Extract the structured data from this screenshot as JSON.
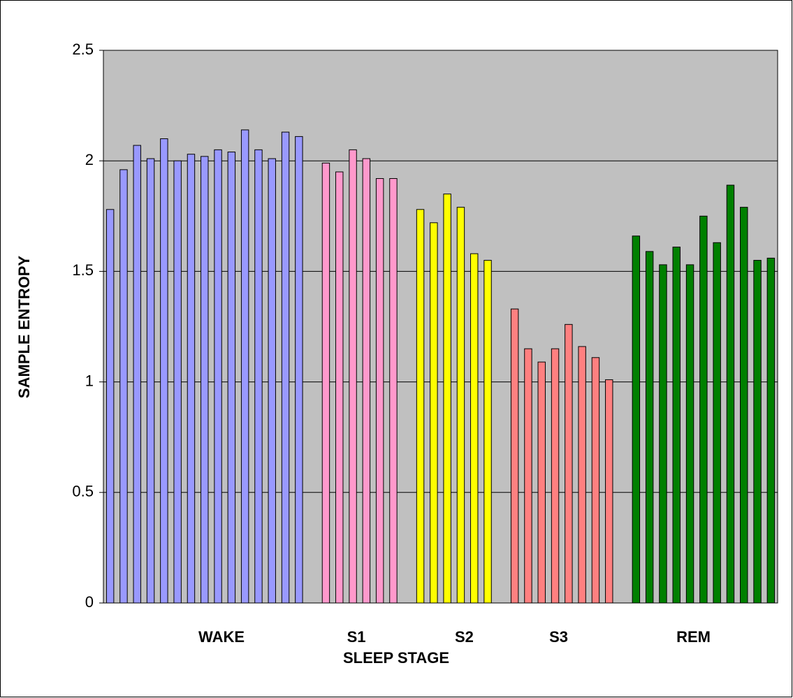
{
  "chart_data": {
    "type": "bar",
    "y_label": "SAMPLE ENTROPY",
    "x_label": "SLEEP STAGE",
    "categories": [
      null,
      null,
      null,
      null,
      null,
      null,
      null,
      null,
      "WAKE",
      null,
      null,
      null,
      null,
      null,
      null,
      null,
      null,
      null,
      "S1",
      null,
      null,
      null,
      null,
      null,
      null,
      null,
      "S2",
      null,
      null,
      null,
      null,
      null,
      null,
      "S3",
      null,
      null,
      null,
      null,
      null,
      null,
      null,
      null,
      null,
      "REM",
      null,
      null,
      null,
      null,
      null,
      null
    ],
    "values": [
      1.78,
      1.96,
      2.07,
      2.01,
      2.1,
      2.0,
      2.03,
      2.02,
      2.05,
      2.04,
      2.14,
      2.05,
      2.01,
      2.13,
      2.11,
      null,
      1.99,
      1.95,
      2.05,
      2.01,
      1.92,
      1.92,
      null,
      1.78,
      1.72,
      1.85,
      1.79,
      1.58,
      1.55,
      null,
      1.33,
      1.15,
      1.09,
      1.15,
      1.26,
      1.16,
      1.11,
      1.01,
      null,
      1.66,
      1.59,
      1.53,
      1.61,
      1.53,
      1.75,
      1.63,
      1.89,
      1.79,
      1.55,
      1.56
    ],
    "colors": [
      "#9999ff",
      "#9999ff",
      "#9999ff",
      "#9999ff",
      "#9999ff",
      "#9999ff",
      "#9999ff",
      "#9999ff",
      "#9999ff",
      "#9999ff",
      "#9999ff",
      "#9999ff",
      "#9999ff",
      "#9999ff",
      "#9999ff",
      null,
      "#ff99cc",
      "#ff99cc",
      "#ff99cc",
      "#ff99cc",
      "#ff99cc",
      "#ff99cc",
      null,
      "#ffff00",
      "#ffff00",
      "#ffff00",
      "#ffff00",
      "#ffff00",
      "#ffff00",
      null,
      "#ff8080",
      "#ff8080",
      "#ff8080",
      "#ff8080",
      "#ff8080",
      "#ff8080",
      "#ff8080",
      "#ff8080",
      null,
      "#008000",
      "#008000",
      "#008000",
      "#008000",
      "#008000",
      "#008000",
      "#008000",
      "#008000",
      "#008000",
      "#008000",
      "#008000"
    ],
    "ylim": [
      0,
      2.5
    ],
    "yticks": [
      0,
      0.5,
      1,
      1.5,
      2,
      2.5
    ],
    "grid": true,
    "plot_background": "#c0c0c0"
  }
}
